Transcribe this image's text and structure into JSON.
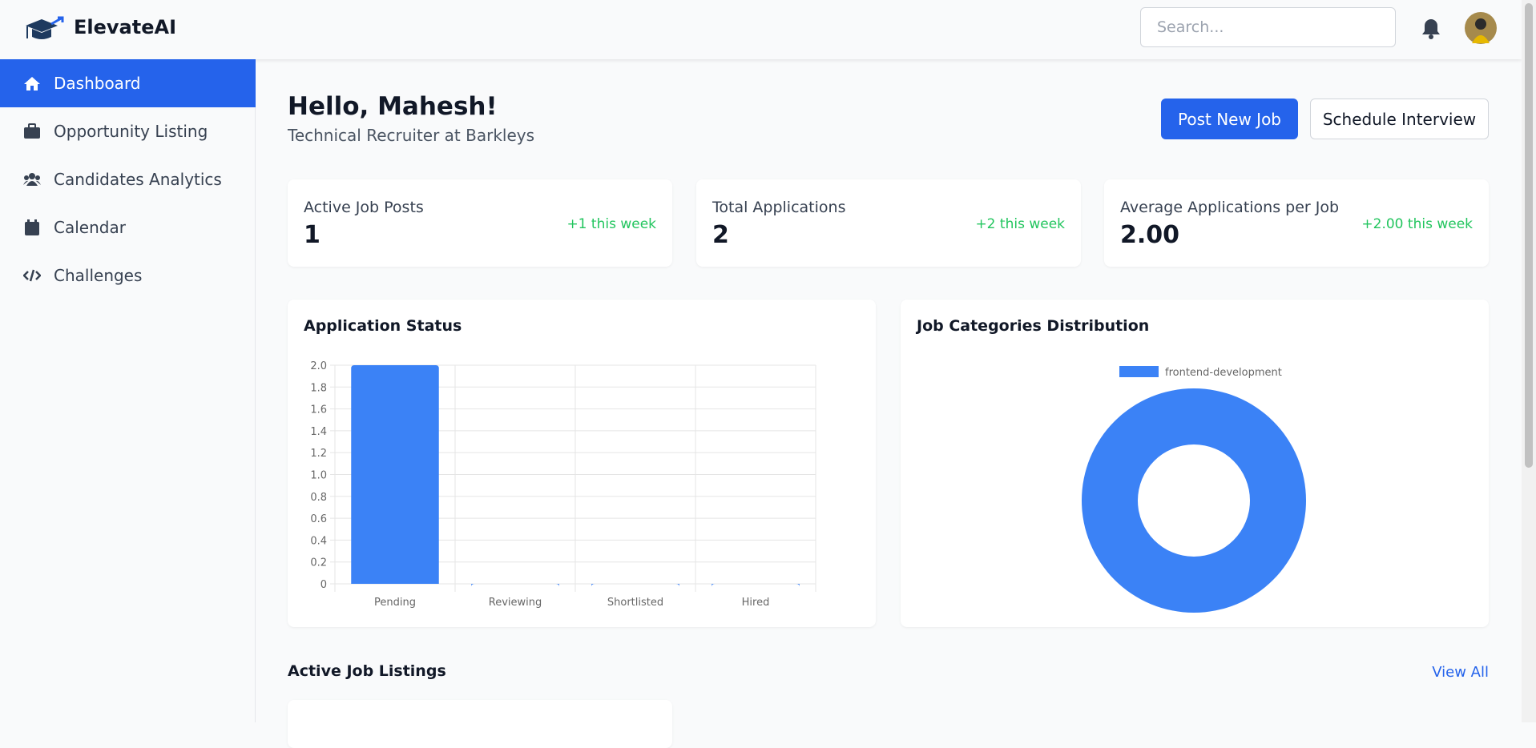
{
  "header": {
    "brand": "ElevateAI",
    "search_placeholder": "Search..."
  },
  "sidebar": {
    "items": [
      "Dashboard",
      "Opportunity Listing",
      "Candidates Analytics",
      "Calendar",
      "Challenges"
    ]
  },
  "greeting": {
    "title": "Hello, Mahesh!",
    "subtitle": "Technical Recruiter at Barkleys",
    "buttons": [
      "Post New Job",
      "Schedule Interview"
    ]
  },
  "stats": [
    {
      "label": "Active Job Posts",
      "value": "1",
      "delta": "+1 this week"
    },
    {
      "label": "Total Applications",
      "value": "2",
      "delta": "+2 this week"
    },
    {
      "label": "Average Applications per Job",
      "value": "2.00",
      "delta": "+2.00 this week"
    }
  ],
  "chart_data": [
    {
      "type": "bar",
      "title": "Application Status",
      "categories": [
        "Pending",
        "Reviewing",
        "Shortlisted",
        "Hired"
      ],
      "values": [
        2,
        0,
        0,
        0
      ],
      "color": "#3b82f6",
      "ylim": [
        0,
        2
      ],
      "yticks": [
        0,
        0.2,
        0.4,
        0.6,
        0.8,
        {
          "value": 1,
          "label": "1.0"
        },
        1.2,
        1.4,
        1.6,
        1.8,
        {
          "value": 2,
          "label": "2.0"
        }
      ],
      "grid": true
    },
    {
      "type": "donut",
      "title": "Job Categories Distribution",
      "categories": [
        "frontend-development"
      ],
      "values": [
        1
      ],
      "colors": [
        "#3b82f6"
      ],
      "legend": "top"
    }
  ],
  "listings": {
    "title": "Active Job Listings",
    "link": "View All"
  }
}
